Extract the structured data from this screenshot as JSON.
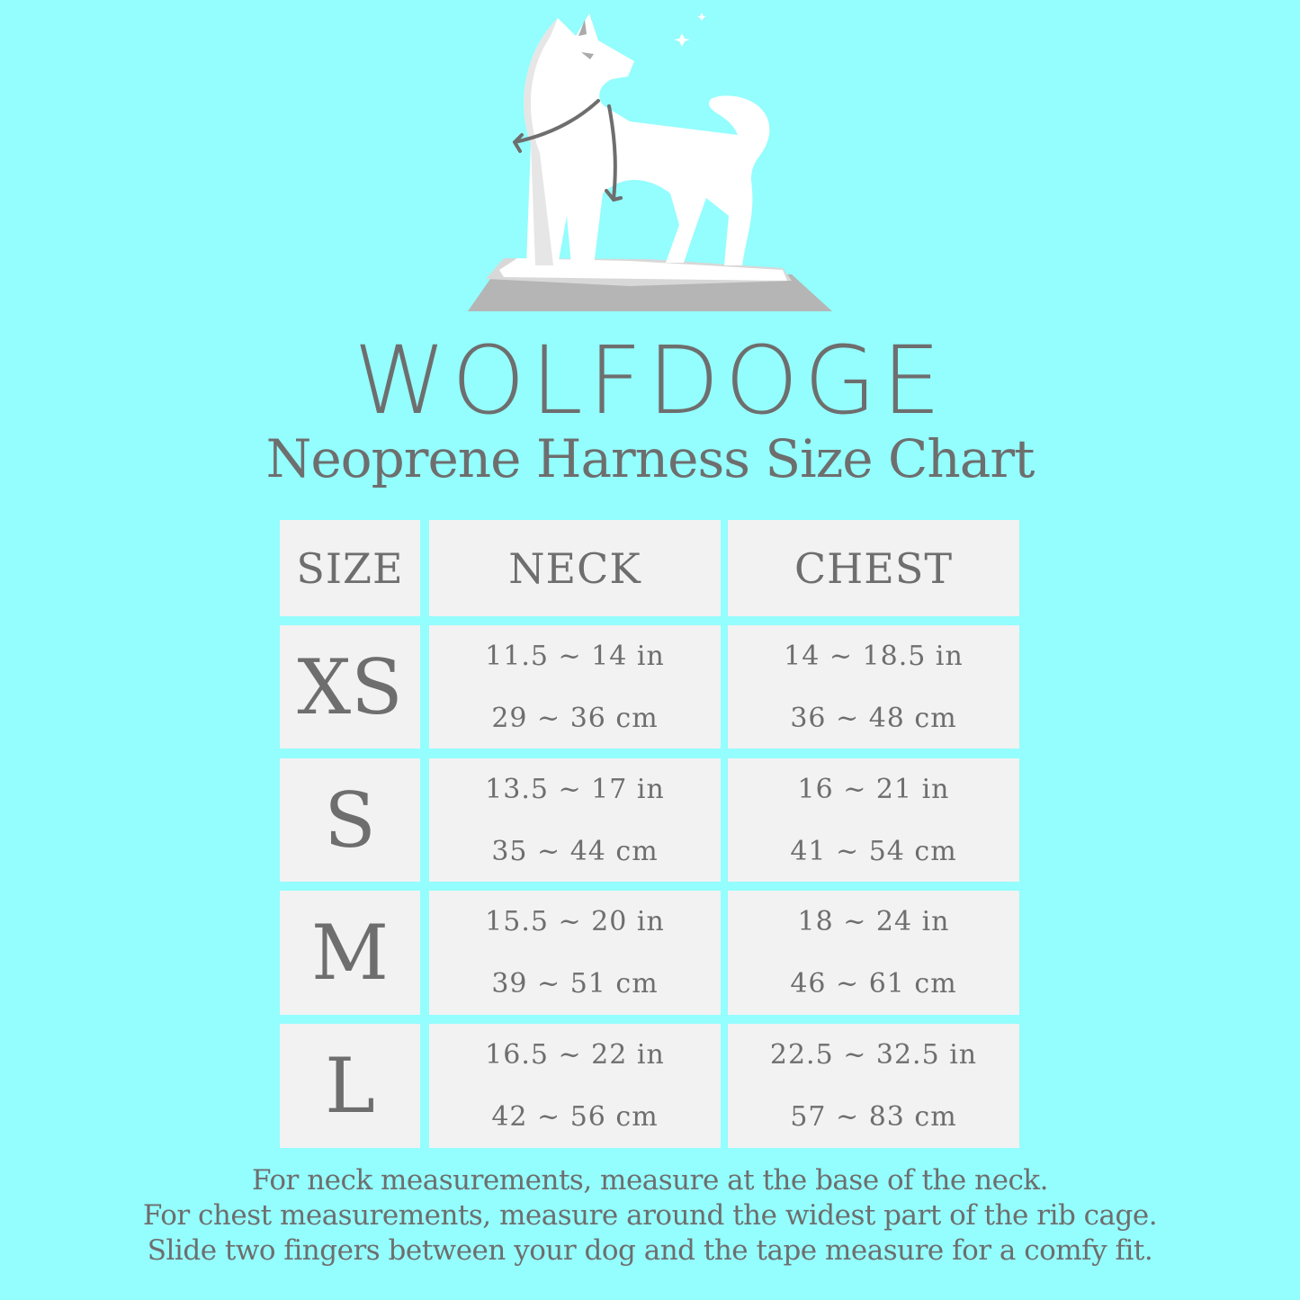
{
  "colors": {
    "background": "#94fdfd",
    "cell": "#f2f2f2",
    "text": "#6e6e6e"
  },
  "logo": {
    "icon": "wolf-dog-on-rock-illustration"
  },
  "brand": "WOLFDOGE",
  "subtitle": "Neoprene Harness Size Chart",
  "table": {
    "headers": [
      "SIZE",
      "NECK",
      "CHEST"
    ],
    "rows": [
      {
        "size": "XS",
        "neck_in": "11.5 ~ 14 in",
        "neck_cm": "29 ~ 36 cm",
        "chest_in": "14 ~ 18.5 in",
        "chest_cm": "36 ~ 48 cm"
      },
      {
        "size": "S",
        "neck_in": "13.5 ~ 17 in",
        "neck_cm": "35 ~ 44 cm",
        "chest_in": "16 ~ 21 in",
        "chest_cm": "41 ~ 54 cm"
      },
      {
        "size": "M",
        "neck_in": "15.5 ~ 20 in",
        "neck_cm": "39 ~ 51 cm",
        "chest_in": "18 ~ 24 in",
        "chest_cm": "46 ~ 61 cm"
      },
      {
        "size": "L",
        "neck_in": "16.5 ~ 22 in",
        "neck_cm": "42 ~ 56 cm",
        "chest_in": "22.5 ~ 32.5 in",
        "chest_cm": "57 ~ 83 cm"
      }
    ]
  },
  "notes": [
    "For neck measurements, measure at the base of the neck.",
    "For chest measurements, measure around the widest part of the rib cage.",
    "Slide two fingers between your dog and the tape measure for a comfy fit."
  ]
}
